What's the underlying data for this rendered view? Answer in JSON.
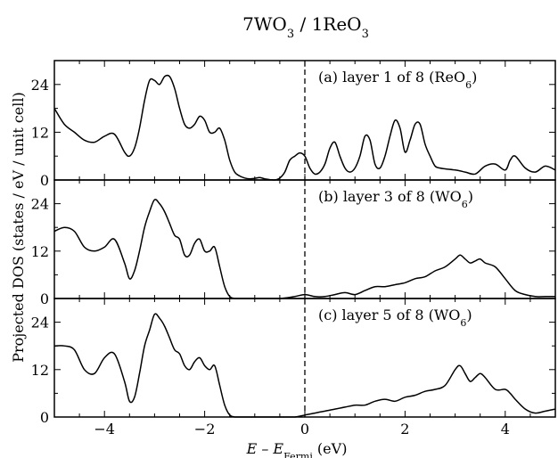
{
  "figure": {
    "title": {
      "main_1": "7WO",
      "sub_1": "3",
      "main_2": " / 1ReO",
      "sub_2": "3"
    },
    "ylabel": "Projected DOS (states / eV / unit cell)",
    "xlabel": {
      "prefix": "E – E",
      "sub": "Fermi",
      "suffix": " (eV)"
    }
  },
  "chart_data": [
    {
      "type": "line",
      "label": {
        "main": "(a) layer 1 of 8 (ReO",
        "sub": "6",
        "close": ")"
      },
      "xlim": [
        -5,
        5
      ],
      "ylim": [
        0,
        30
      ],
      "xticks": [
        -4,
        -2,
        0,
        2,
        4
      ],
      "yticks": [
        0,
        12,
        24
      ],
      "ytick_labels": [
        "0",
        "12",
        "24"
      ],
      "fermi_line_x": 0,
      "series": [
        {
          "x": [
            -5.0,
            -4.8,
            -4.6,
            -4.4,
            -4.2,
            -4.0,
            -3.8,
            -3.6,
            -3.5,
            -3.4,
            -3.3,
            -3.2,
            -3.1,
            -3.0,
            -2.9,
            -2.8,
            -2.7,
            -2.6,
            -2.5,
            -2.4,
            -2.3,
            -2.2,
            -2.1,
            -2.0,
            -1.9,
            -1.8,
            -1.7,
            -1.6,
            -1.5,
            -1.4,
            -1.3,
            -1.2,
            -1.1,
            -1.0,
            -0.9,
            -0.8,
            -0.7,
            -0.6,
            -0.5,
            -0.4,
            -0.3,
            -0.2,
            -0.1,
            0.0,
            0.1,
            0.2,
            0.3,
            0.4,
            0.5,
            0.6,
            0.7,
            0.8,
            0.9,
            1.0,
            1.1,
            1.2,
            1.3,
            1.4,
            1.5,
            1.6,
            1.7,
            1.8,
            1.9,
            2.0,
            2.1,
            2.2,
            2.3,
            2.4,
            2.5,
            2.6,
            2.7,
            2.8,
            3.0,
            3.2,
            3.4,
            3.6,
            3.8,
            4.0,
            4.1,
            4.2,
            4.4,
            4.6,
            4.8,
            5.0
          ],
          "y": [
            18,
            14,
            12,
            10,
            9.5,
            11,
            11.5,
            7,
            6,
            8,
            13,
            20,
            25,
            25,
            24,
            26,
            26,
            23,
            18,
            14,
            13,
            14,
            16,
            15,
            12,
            12,
            13,
            10,
            5,
            2,
            1,
            0.5,
            0.3,
            0.4,
            0.6,
            0.3,
            0.1,
            0,
            0.5,
            2,
            5,
            6,
            6.8,
            6,
            3,
            1.5,
            2,
            4,
            8,
            9.5,
            6,
            3,
            2,
            3,
            6,
            11,
            10,
            4,
            3,
            6,
            11,
            15,
            13,
            7,
            10,
            14,
            14,
            9,
            6,
            3.5,
            3,
            2.8,
            2.5,
            2,
            1.5,
            3.5,
            4,
            2.5,
            5,
            6,
            3,
            2,
            3.5,
            2.5
          ]
        }
      ]
    },
    {
      "type": "line",
      "label": {
        "main": "(b) layer 3 of 8 (WO",
        "sub": "6",
        "close": ")"
      },
      "xlim": [
        -5,
        5
      ],
      "ylim": [
        0,
        30
      ],
      "xticks": [
        -4,
        -2,
        0,
        2,
        4
      ],
      "yticks": [
        0,
        12,
        24
      ],
      "ytick_labels": [
        "0",
        "12",
        "24"
      ],
      "fermi_line_x": 0,
      "series": [
        {
          "x": [
            -5.0,
            -4.8,
            -4.6,
            -4.4,
            -4.2,
            -4.0,
            -3.8,
            -3.6,
            -3.5,
            -3.4,
            -3.3,
            -3.2,
            -3.1,
            -3.0,
            -2.9,
            -2.8,
            -2.7,
            -2.6,
            -2.5,
            -2.4,
            -2.3,
            -2.2,
            -2.1,
            -2.0,
            -1.9,
            -1.8,
            -1.7,
            -1.6,
            -1.5,
            -1.4,
            -1.3,
            -1.0,
            -0.5,
            -0.2,
            0.0,
            0.2,
            0.4,
            0.6,
            0.8,
            1.0,
            1.2,
            1.4,
            1.6,
            1.8,
            2.0,
            2.2,
            2.4,
            2.6,
            2.8,
            3.0,
            3.1,
            3.2,
            3.3,
            3.4,
            3.5,
            3.6,
            3.8,
            4.0,
            4.2,
            4.4,
            4.6,
            4.8,
            5.0
          ],
          "y": [
            17,
            18,
            17,
            13,
            12,
            13,
            15,
            9,
            5,
            7,
            12,
            18,
            22,
            25,
            24,
            22,
            19,
            16,
            15,
            11,
            11,
            14,
            15,
            12,
            12,
            13,
            8,
            3,
            0.5,
            0,
            0,
            0,
            0,
            0.5,
            1,
            0.5,
            0.5,
            1,
            1.5,
            1,
            2,
            3,
            3,
            3.5,
            4,
            5,
            5.5,
            7,
            8,
            10,
            11,
            10,
            9,
            9.5,
            10,
            9,
            8,
            5,
            2,
            1,
            0.5,
            0.5,
            0.5
          ]
        }
      ]
    },
    {
      "type": "line",
      "label": {
        "main": "(c) layer 5 of 8 (WO",
        "sub": "6",
        "close": ")"
      },
      "xlim": [
        -5,
        5
      ],
      "ylim": [
        0,
        30
      ],
      "xticks": [
        -4,
        -2,
        0,
        2,
        4
      ],
      "xtick_labels": [
        "-4",
        "-2",
        "0",
        "2",
        "4"
      ],
      "yticks": [
        0,
        12,
        24
      ],
      "ytick_labels": [
        "0",
        "12",
        "24"
      ],
      "fermi_line_x": 0,
      "series": [
        {
          "x": [
            -5.0,
            -4.8,
            -4.6,
            -4.4,
            -4.2,
            -4.0,
            -3.8,
            -3.6,
            -3.5,
            -3.4,
            -3.3,
            -3.2,
            -3.1,
            -3.0,
            -2.9,
            -2.8,
            -2.7,
            -2.6,
            -2.5,
            -2.4,
            -2.3,
            -2.2,
            -2.1,
            -2.0,
            -1.9,
            -1.8,
            -1.7,
            -1.6,
            -1.5,
            -1.4,
            -1.3,
            -1.0,
            -0.5,
            -0.2,
            0.0,
            0.2,
            0.4,
            0.6,
            0.8,
            1.0,
            1.2,
            1.4,
            1.6,
            1.8,
            2.0,
            2.2,
            2.4,
            2.6,
            2.8,
            3.0,
            3.1,
            3.2,
            3.3,
            3.4,
            3.5,
            3.6,
            3.8,
            4.0,
            4.1,
            4.2,
            4.4,
            4.6,
            4.8,
            5.0
          ],
          "y": [
            18,
            18,
            17,
            12,
            11,
            15,
            16,
            9,
            4,
            5,
            11,
            18,
            22,
            26,
            25,
            23,
            20,
            17,
            16,
            13,
            12,
            14,
            15,
            13,
            12,
            13,
            8,
            3,
            0.5,
            0,
            0,
            0,
            0,
            0,
            0.5,
            1,
            1.5,
            2,
            2.5,
            3,
            3,
            4,
            4.5,
            4,
            5,
            5.5,
            6.5,
            7,
            8,
            12,
            13,
            11,
            9,
            10,
            11,
            10,
            7,
            7,
            6,
            4.5,
            2,
            1,
            1.5,
            2
          ]
        }
      ]
    }
  ]
}
